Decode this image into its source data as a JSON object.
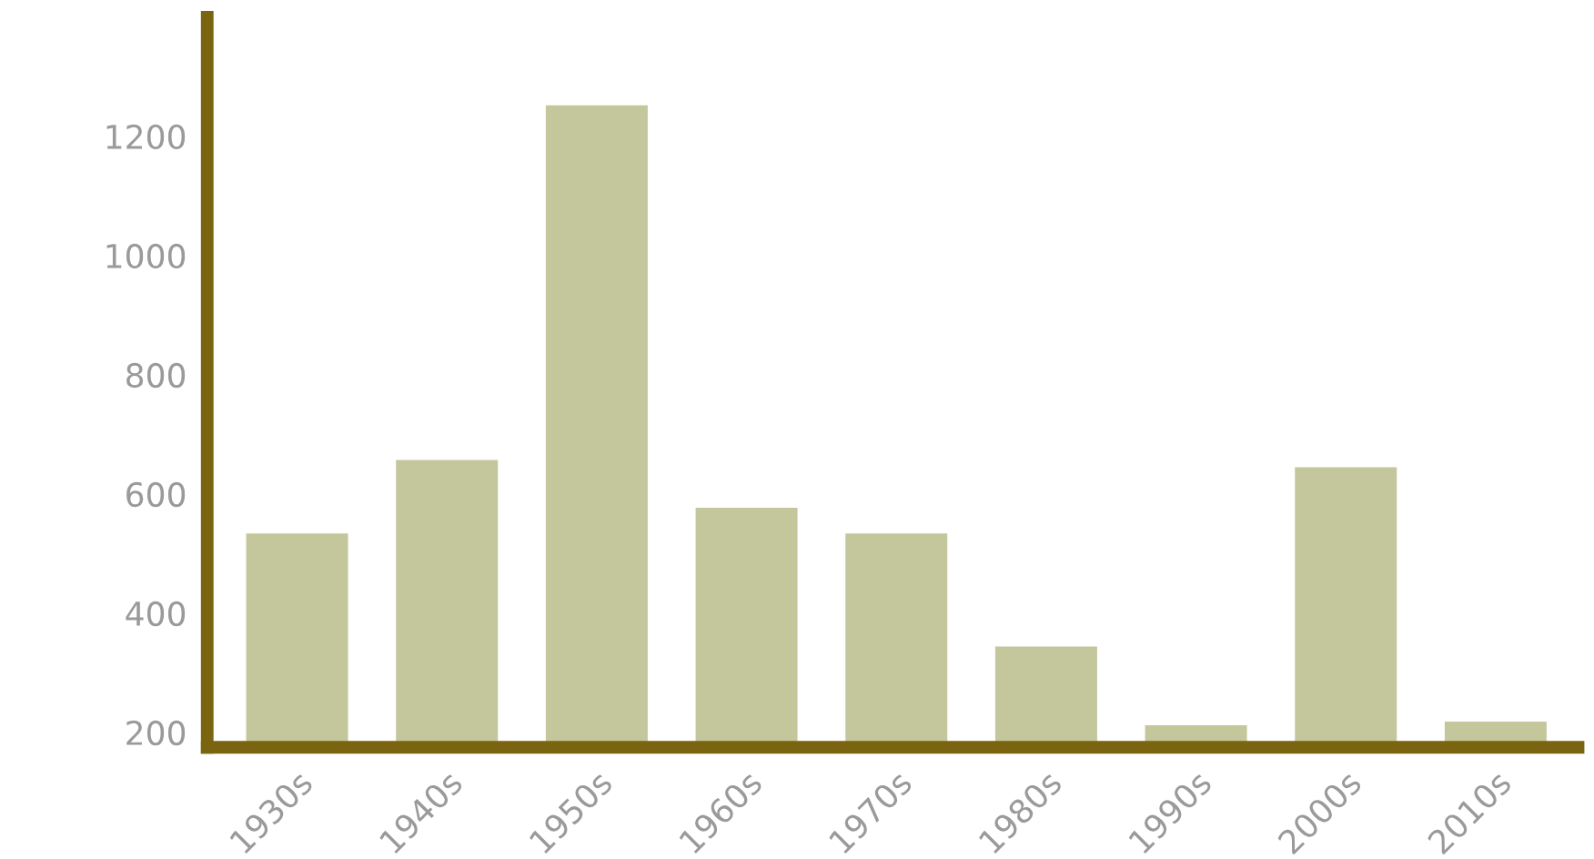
{
  "chart_data": {
    "type": "bar",
    "categories": [
      "1930s",
      "1940s",
      "1950s",
      "1960s",
      "1970s",
      "1980s",
      "1990s",
      "2000s",
      "2010s"
    ],
    "values": [
      534,
      657,
      1252,
      577,
      534,
      344,
      212,
      645,
      218
    ],
    "color": "#c4c69c",
    "ylim": [
      175,
      1400
    ],
    "yticks": [
      200,
      400,
      600,
      800,
      1000,
      1200
    ],
    "grid": false,
    "legend": false
  }
}
